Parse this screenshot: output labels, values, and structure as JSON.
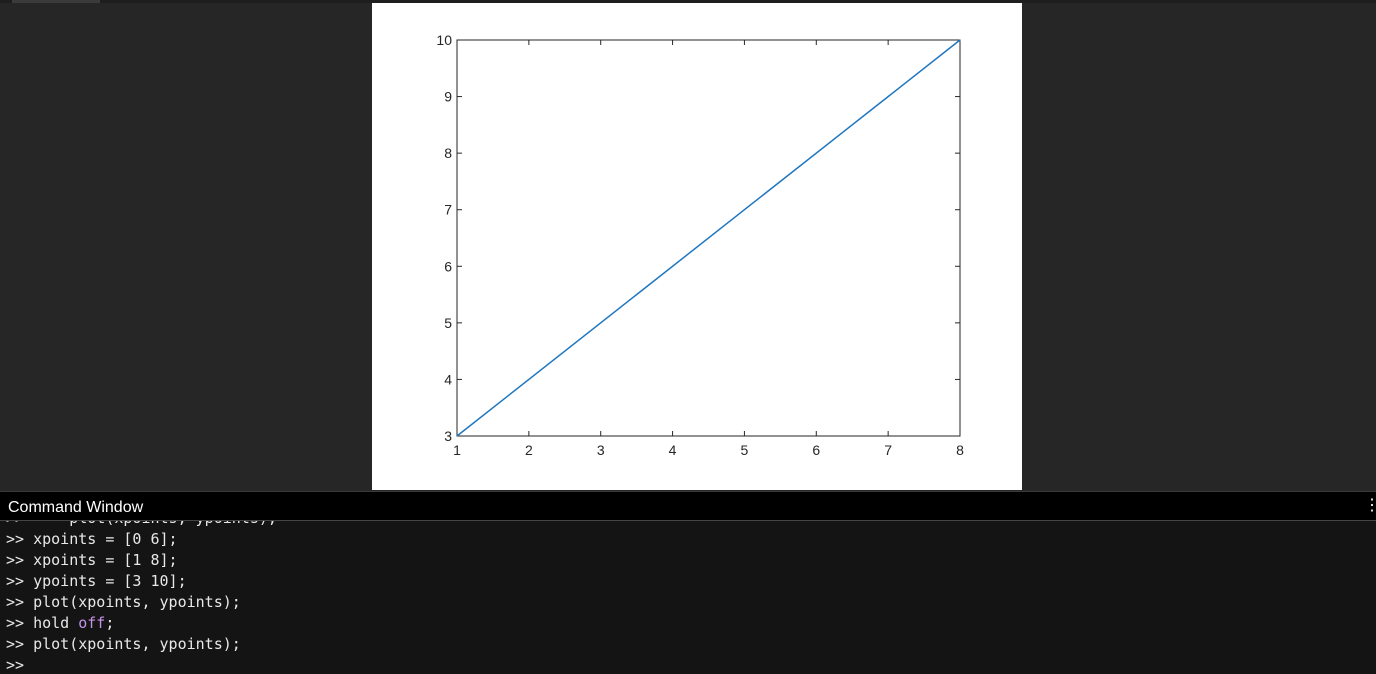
{
  "window": {
    "command_window_title": "Command Window",
    "menu_glyph": "⋮"
  },
  "command_history": {
    "partial_line_top": ">>     plot(xpoints, ypoints);",
    "lines": [
      ">> xpoints = [0 6];",
      ">> xpoints = [1 8];",
      ">> ypoints = [3 10];",
      ">> plot(xpoints, ypoints);",
      ">> hold ",
      ">> plot(xpoints, ypoints);",
      ">> "
    ],
    "hold_keyword": "off",
    "hold_suffix": ";"
  },
  "colors": {
    "line": "#1f77c0",
    "axes": "#262626",
    "canvas": "#ffffff",
    "background": "#262626",
    "keyword": "#c792ea"
  },
  "chart_data": {
    "type": "line",
    "title": "",
    "xlabel": "",
    "ylabel": "",
    "x": [
      1,
      8
    ],
    "series": [
      {
        "values": [
          3,
          10
        ]
      }
    ],
    "xlim": [
      1,
      8
    ],
    "ylim": [
      3,
      10
    ],
    "xticks": [
      "1",
      "2",
      "3",
      "4",
      "5",
      "6",
      "7",
      "8"
    ],
    "yticks": [
      "3",
      "4",
      "5",
      "6",
      "7",
      "8",
      "9",
      "10"
    ],
    "grid": false,
    "legend": "none"
  }
}
